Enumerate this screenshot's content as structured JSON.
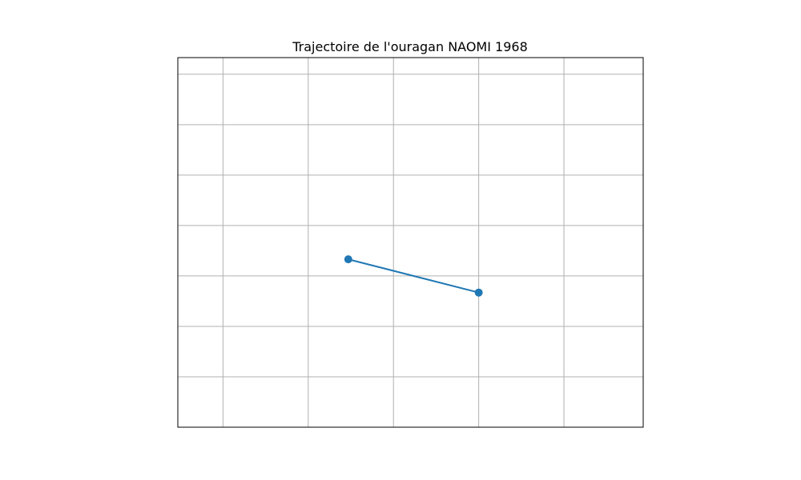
{
  "chart_data": {
    "type": "line",
    "title": "Trajectoire de l'ouragan NAOMI 1968",
    "xlabel": "",
    "ylabel": "",
    "xlim": [
      -2.53,
      2.93
    ],
    "ylim": [
      -2.0,
      5.33
    ],
    "grid": true,
    "x_gridlines": [
      -2,
      -1,
      0,
      1,
      2
    ],
    "y_gridlines": [
      -1,
      0,
      1,
      2,
      3,
      4,
      5
    ],
    "series": [
      {
        "x": [
          -0.53,
          1.0
        ],
        "y": [
          1.33,
          0.67
        ],
        "marker": "circle"
      }
    ],
    "colors": {
      "line": "#1f77b4",
      "grid": "#b0b0b0",
      "axes": "#000000"
    }
  }
}
